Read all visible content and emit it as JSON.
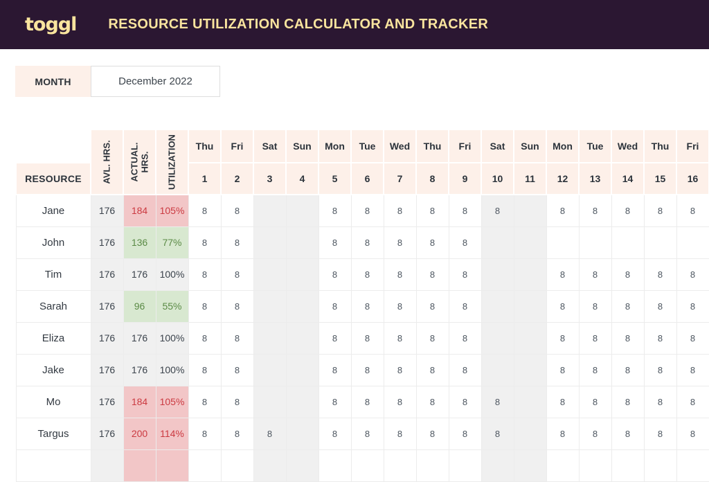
{
  "header": {
    "logo": "toggl",
    "title": "RESOURCE UTILIZATION CALCULATOR AND TRACKER"
  },
  "month": {
    "label": "MONTH",
    "value": "December 2022"
  },
  "table": {
    "resource_header": "RESOURCE",
    "stat_headers": [
      "AVL. HRS.",
      "ACTUAL. HRS.",
      "UTILIZATION"
    ],
    "days": [
      {
        "name": "Thu",
        "num": "1",
        "weekend": false
      },
      {
        "name": "Fri",
        "num": "2",
        "weekend": false
      },
      {
        "name": "Sat",
        "num": "3",
        "weekend": true
      },
      {
        "name": "Sun",
        "num": "4",
        "weekend": true
      },
      {
        "name": "Mon",
        "num": "5",
        "weekend": false
      },
      {
        "name": "Tue",
        "num": "6",
        "weekend": false
      },
      {
        "name": "Wed",
        "num": "7",
        "weekend": false
      },
      {
        "name": "Thu",
        "num": "8",
        "weekend": false
      },
      {
        "name": "Fri",
        "num": "9",
        "weekend": false
      },
      {
        "name": "Sat",
        "num": "10",
        "weekend": true
      },
      {
        "name": "Sun",
        "num": "11",
        "weekend": true
      },
      {
        "name": "Mon",
        "num": "12",
        "weekend": false
      },
      {
        "name": "Tue",
        "num": "13",
        "weekend": false
      },
      {
        "name": "Wed",
        "num": "14",
        "weekend": false
      },
      {
        "name": "Thu",
        "num": "15",
        "weekend": false
      },
      {
        "name": "Fri",
        "num": "16",
        "weekend": false
      }
    ],
    "rows": [
      {
        "name": "Jane",
        "avl": "176",
        "actual": "184",
        "util": "105%",
        "status": "over",
        "hours": [
          "8",
          "8",
          "",
          "",
          "8",
          "8",
          "8",
          "8",
          "8",
          "8",
          "",
          "8",
          "8",
          "8",
          "8",
          "8"
        ]
      },
      {
        "name": "John",
        "avl": "176",
        "actual": "136",
        "util": "77%",
        "status": "under",
        "hours": [
          "8",
          "8",
          "",
          "",
          "8",
          "8",
          "8",
          "8",
          "8",
          "",
          "",
          "",
          "",
          "",
          "",
          ""
        ]
      },
      {
        "name": "Tim",
        "avl": "176",
        "actual": "176",
        "util": "100%",
        "status": "full",
        "hours": [
          "8",
          "8",
          "",
          "",
          "8",
          "8",
          "8",
          "8",
          "8",
          "",
          "",
          "8",
          "8",
          "8",
          "8",
          "8"
        ]
      },
      {
        "name": "Sarah",
        "avl": "176",
        "actual": "96",
        "util": "55%",
        "status": "under",
        "hours": [
          "8",
          "8",
          "",
          "",
          "8",
          "8",
          "8",
          "8",
          "8",
          "",
          "",
          "8",
          "8",
          "8",
          "8",
          "8"
        ]
      },
      {
        "name": "Eliza",
        "avl": "176",
        "actual": "176",
        "util": "100%",
        "status": "full",
        "hours": [
          "8",
          "8",
          "",
          "",
          "8",
          "8",
          "8",
          "8",
          "8",
          "",
          "",
          "8",
          "8",
          "8",
          "8",
          "8"
        ]
      },
      {
        "name": "Jake",
        "avl": "176",
        "actual": "176",
        "util": "100%",
        "status": "full",
        "hours": [
          "8",
          "8",
          "",
          "",
          "8",
          "8",
          "8",
          "8",
          "8",
          "",
          "",
          "8",
          "8",
          "8",
          "8",
          "8"
        ]
      },
      {
        "name": "Mo",
        "avl": "176",
        "actual": "184",
        "util": "105%",
        "status": "over",
        "hours": [
          "8",
          "8",
          "",
          "",
          "8",
          "8",
          "8",
          "8",
          "8",
          "8",
          "",
          "8",
          "8",
          "8",
          "8",
          "8"
        ]
      },
      {
        "name": "Targus",
        "avl": "176",
        "actual": "200",
        "util": "114%",
        "status": "over",
        "hours": [
          "8",
          "8",
          "8",
          "",
          "8",
          "8",
          "8",
          "8",
          "8",
          "8",
          "",
          "8",
          "8",
          "8",
          "8",
          "8"
        ]
      }
    ],
    "partial_row": {
      "status": "over"
    }
  },
  "colors": {
    "header_bg": "#2b1732",
    "brand_text": "#f9e49e",
    "peach": "#fdf0e9",
    "neutral_bg": "#f0f0f0",
    "over_bg": "#f2c6c7",
    "over_text": "#cb3a41",
    "under_bg": "#d8e8d0",
    "under_text": "#5a8a45",
    "grid": "#ececec"
  }
}
